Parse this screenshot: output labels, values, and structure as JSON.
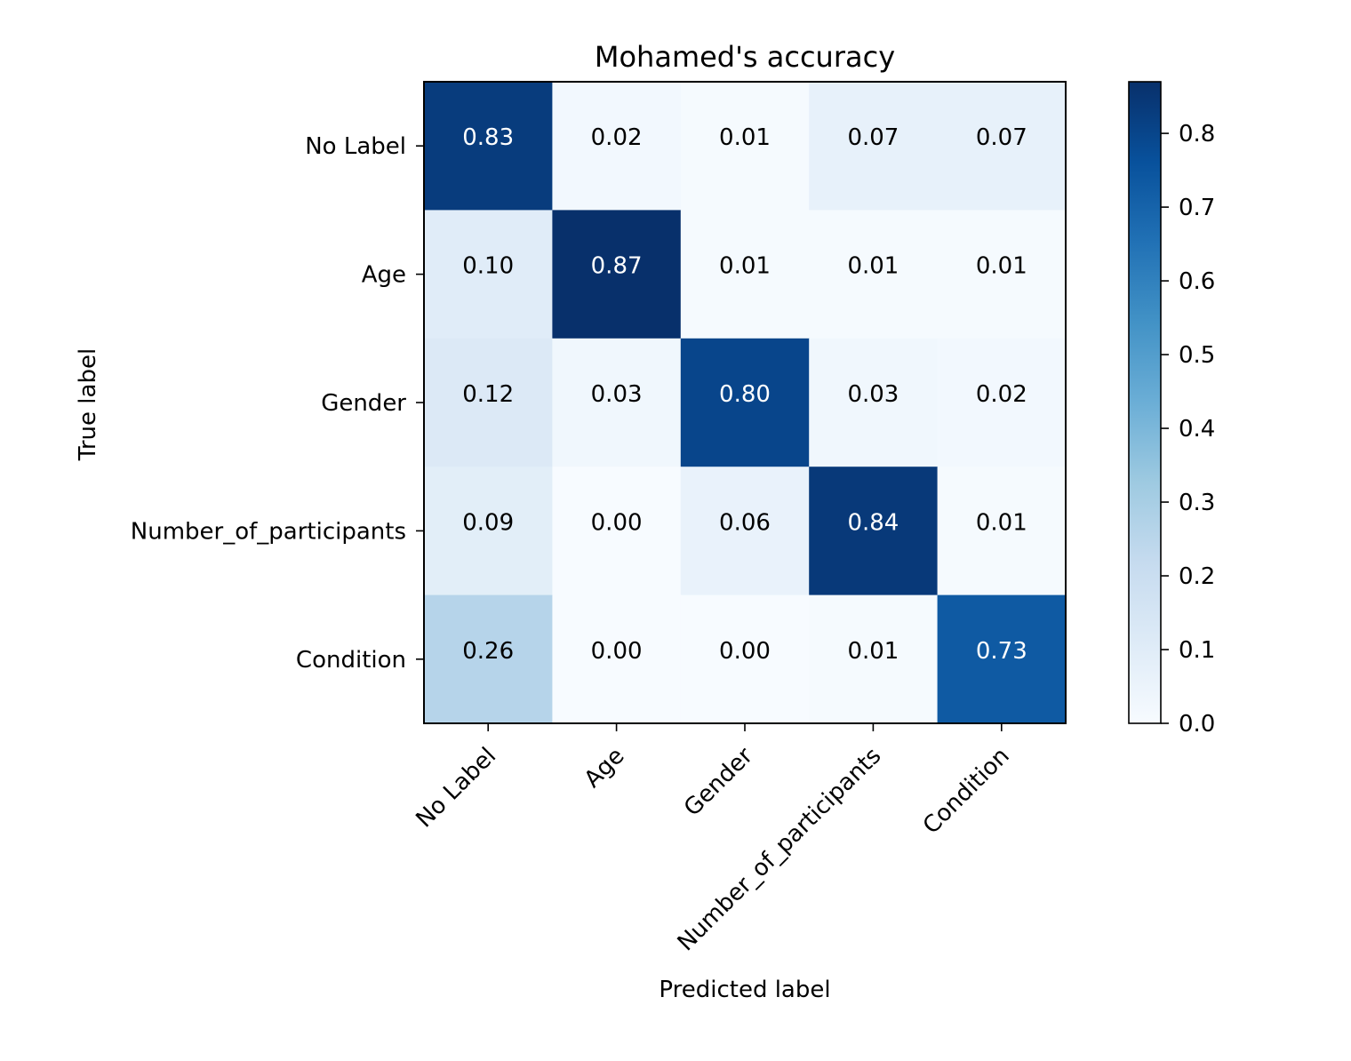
{
  "chart_data": {
    "type": "heatmap",
    "title": "Mohamed's accuracy",
    "xlabel": "Predicted label",
    "ylabel": "True label",
    "x_categories": [
      "No Label",
      "Age",
      "Gender",
      "Number_of_participants",
      "Condition"
    ],
    "y_categories": [
      "No Label",
      "Age",
      "Gender",
      "Number_of_participants",
      "Condition"
    ],
    "values": [
      [
        0.83,
        0.02,
        0.01,
        0.07,
        0.07
      ],
      [
        0.1,
        0.87,
        0.01,
        0.01,
        0.01
      ],
      [
        0.12,
        0.03,
        0.8,
        0.03,
        0.02
      ],
      [
        0.09,
        0.0,
        0.06,
        0.84,
        0.01
      ],
      [
        0.26,
        0.0,
        0.0,
        0.01,
        0.73
      ]
    ],
    "value_labels": [
      [
        "0.83",
        "0.02",
        "0.01",
        "0.07",
        "0.07"
      ],
      [
        "0.10",
        "0.87",
        "0.01",
        "0.01",
        "0.01"
      ],
      [
        "0.12",
        "0.03",
        "0.80",
        "0.03",
        "0.02"
      ],
      [
        "0.09",
        "0.00",
        "0.06",
        "0.84",
        "0.01"
      ],
      [
        "0.26",
        "0.00",
        "0.00",
        "0.01",
        "0.73"
      ]
    ],
    "colormap": "Blues",
    "color_range": [
      0.0,
      0.87
    ],
    "colorbar_ticks": [
      0.0,
      0.1,
      0.2,
      0.3,
      0.4,
      0.5,
      0.6,
      0.7,
      0.8
    ],
    "colorbar_tick_labels": [
      "0.0",
      "0.1",
      "0.2",
      "0.3",
      "0.4",
      "0.5",
      "0.6",
      "0.7",
      "0.8"
    ],
    "text_color_light": "#ffffff",
    "text_color_dark": "#000000",
    "grid": false
  }
}
